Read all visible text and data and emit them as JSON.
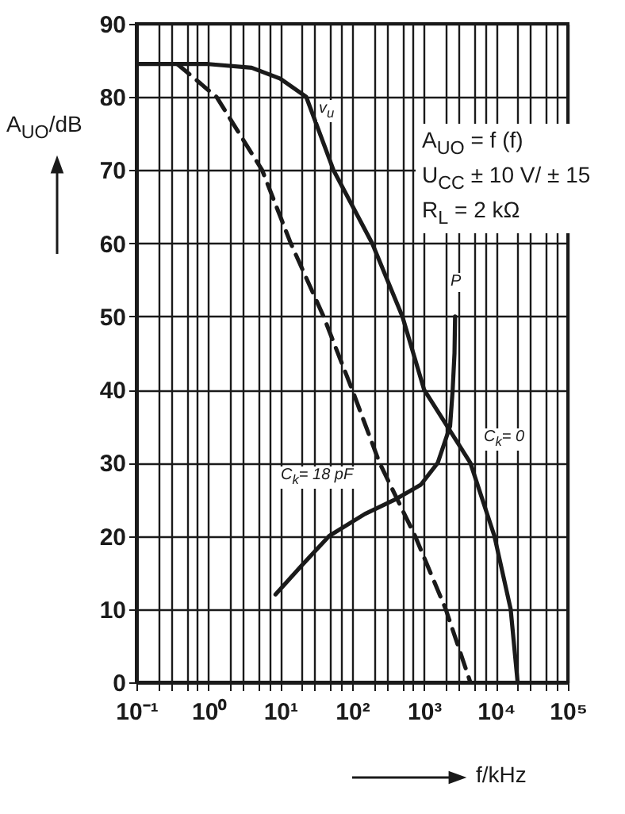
{
  "chart_data": {
    "type": "line",
    "xlabel": "f/kHz",
    "ylabel": "A$_{UO}$/dB",
    "log": "x",
    "grid": true,
    "xlim": [
      0.1,
      100000
    ],
    "ylim": [
      0,
      90
    ],
    "xticks": [
      {
        "value": 0.1,
        "label": "10⁻¹"
      },
      {
        "value": 0.2,
        "label": null
      },
      {
        "value": 0.3,
        "label": null
      },
      {
        "value": 0.5,
        "label": null
      },
      {
        "value": 0.7,
        "label": null
      },
      {
        "value": 1,
        "label": "10⁰"
      },
      {
        "value": 2,
        "label": null
      },
      {
        "value": 3,
        "label": null
      },
      {
        "value": 5,
        "label": null
      },
      {
        "value": 7,
        "label": null
      },
      {
        "value": 10,
        "label": "10¹"
      },
      {
        "value": 20,
        "label": null
      },
      {
        "value": 30,
        "label": null
      },
      {
        "value": 50,
        "label": null
      },
      {
        "value": 70,
        "label": null
      },
      {
        "value": 100,
        "label": "10²"
      },
      {
        "value": 200,
        "label": null
      },
      {
        "value": 300,
        "label": null
      },
      {
        "value": 500,
        "label": null
      },
      {
        "value": 700,
        "label": null
      },
      {
        "value": 1000,
        "label": "10³"
      },
      {
        "value": 2000,
        "label": null
      },
      {
        "value": 3000,
        "label": null
      },
      {
        "value": 5000,
        "label": null
      },
      {
        "value": 7000,
        "label": null
      },
      {
        "value": 10000,
        "label": "10⁴"
      },
      {
        "value": 20000,
        "label": null
      },
      {
        "value": 30000,
        "label": null
      },
      {
        "value": 50000,
        "label": null
      },
      {
        "value": 70000,
        "label": null
      },
      {
        "value": 100000,
        "label": "10⁵"
      }
    ],
    "yticks": [
      0,
      10,
      20,
      30,
      40,
      50,
      60,
      70,
      80,
      90
    ],
    "series": [
      {
        "color": "#1a1a1a",
        "line_style": "solid",
        "x": [
          0.1,
          1,
          4,
          10,
          23,
          55,
          190,
          500,
          1000,
          4400,
          9500,
          16000,
          20000
        ],
        "values": [
          84.5,
          84.5,
          84,
          82.5,
          80,
          70,
          60,
          50,
          40,
          30,
          20,
          10,
          0
        ]
      },
      {
        "color": "#1a1a1a",
        "line_style": "dashed",
        "x": [
          0.37,
          1.3,
          5.6,
          14,
          40,
          100,
          240,
          750,
          2000,
          4400
        ],
        "values": [
          84.5,
          80,
          70,
          60,
          50,
          40,
          30,
          20,
          10,
          0
        ]
      },
      {
        "color": "#1a1a1a",
        "line_style": "solid",
        "x": [
          8.6,
          20,
          48,
          150,
          400,
          900,
          1550,
          2300,
          2500,
          2650,
          2700
        ],
        "values": [
          12,
          16,
          20,
          23,
          25,
          27,
          30,
          35,
          40,
          45,
          50
        ]
      }
    ],
    "annotations": [
      "v$_{u}$",
      "P",
      "C$_{k}$= 18 pF",
      "C$_{k}$= 0",
      "A$_{UO}$ = f (f)",
      "U$_{CC}$ ± 10 V/ ± 15",
      "R$_{L}$ = 2 kΩ"
    ]
  }
}
